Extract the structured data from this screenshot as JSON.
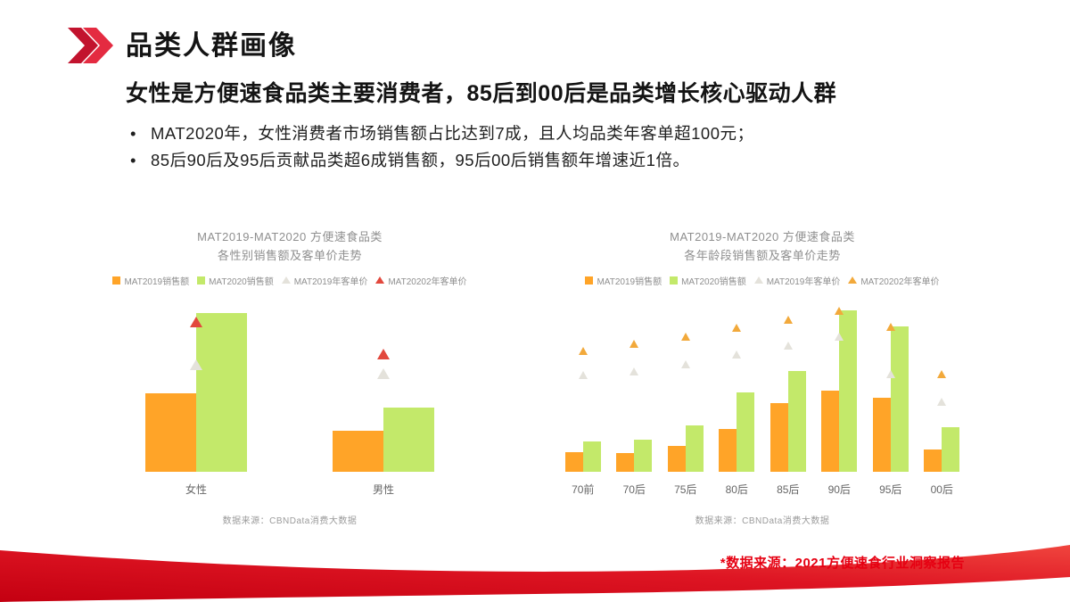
{
  "slide": {
    "title": "品类人群画像",
    "subtitle": "女性是方便速食品类主要消费者，85后到00后是品类增长核心驱动人群",
    "bullets": [
      "MAT2020年，女性消费者市场销售额占比达到7成，且人均品类年客单超100元；",
      "85后90后及95后贡献品类超6成销售额，95后00后销售额年增速近1倍。"
    ],
    "footnote": "*数据来源：2021方便速食行业洞察报告"
  },
  "colors": {
    "accent_red": "#E60012",
    "chevron_dark": "#C2132E",
    "chevron_light": "#E32037",
    "bar_2019": "#FFA428",
    "bar_2020": "#C3E96A",
    "marker_2019": "#E4E2DB",
    "marker_2020_gender": "#E2483D",
    "marker_2020_age": "#F2A93B"
  },
  "chart_data": [
    {
      "type": "bar",
      "title_lines": [
        "MAT2019-MAT2020 方便速食品类",
        "各性别销售额及客单价走势"
      ],
      "categories": [
        "女性",
        "男性"
      ],
      "ylim": [
        0,
        200
      ],
      "grid": false,
      "legend_position": "top",
      "series": [
        {
          "name": "MAT2019销售额",
          "marker": "bar",
          "color": "#FFA428",
          "values": [
            90,
            47
          ]
        },
        {
          "name": "MAT2020销售额",
          "marker": "bar",
          "color": "#C3E96A",
          "values": [
            182,
            73
          ]
        },
        {
          "name": "MAT2019年客单价",
          "marker": "triangle",
          "color": "#E4E2DB",
          "values": [
            123,
            112
          ]
        },
        {
          "name": "MAT20202年客单价",
          "marker": "triangle",
          "color": "#E2483D",
          "values": [
            172,
            135
          ]
        }
      ],
      "source": "数据来源：CBNData消费大数据"
    },
    {
      "type": "bar",
      "title_lines": [
        "MAT2019-MAT2020 方便速食品类",
        "各年龄段销售额及客单价走势"
      ],
      "categories": [
        "70前",
        "70后",
        "75后",
        "80后",
        "85后",
        "90后",
        "95后",
        "00后"
      ],
      "ylim": [
        0,
        200
      ],
      "grid": false,
      "legend_position": "top",
      "series": [
        {
          "name": "MAT2019销售额",
          "marker": "bar",
          "color": "#FFA428",
          "values": [
            22,
            21,
            29,
            49,
            79,
            93,
            85,
            25
          ]
        },
        {
          "name": "MAT2020销售额",
          "marker": "bar",
          "color": "#C3E96A",
          "values": [
            35,
            37,
            53,
            91,
            116,
            185,
            167,
            51
          ]
        },
        {
          "name": "MAT2019年客单价",
          "marker": "triangle",
          "color": "#E4E2DB",
          "values": [
            111,
            115,
            123,
            135,
            145,
            155,
            112,
            80
          ]
        },
        {
          "name": "MAT20202年客单价",
          "marker": "triangle",
          "color": "#F2A93B",
          "values": [
            139,
            147,
            155,
            165,
            175,
            185,
            166,
            112
          ]
        }
      ],
      "source": "数据来源：CBNData消费大数据"
    }
  ]
}
